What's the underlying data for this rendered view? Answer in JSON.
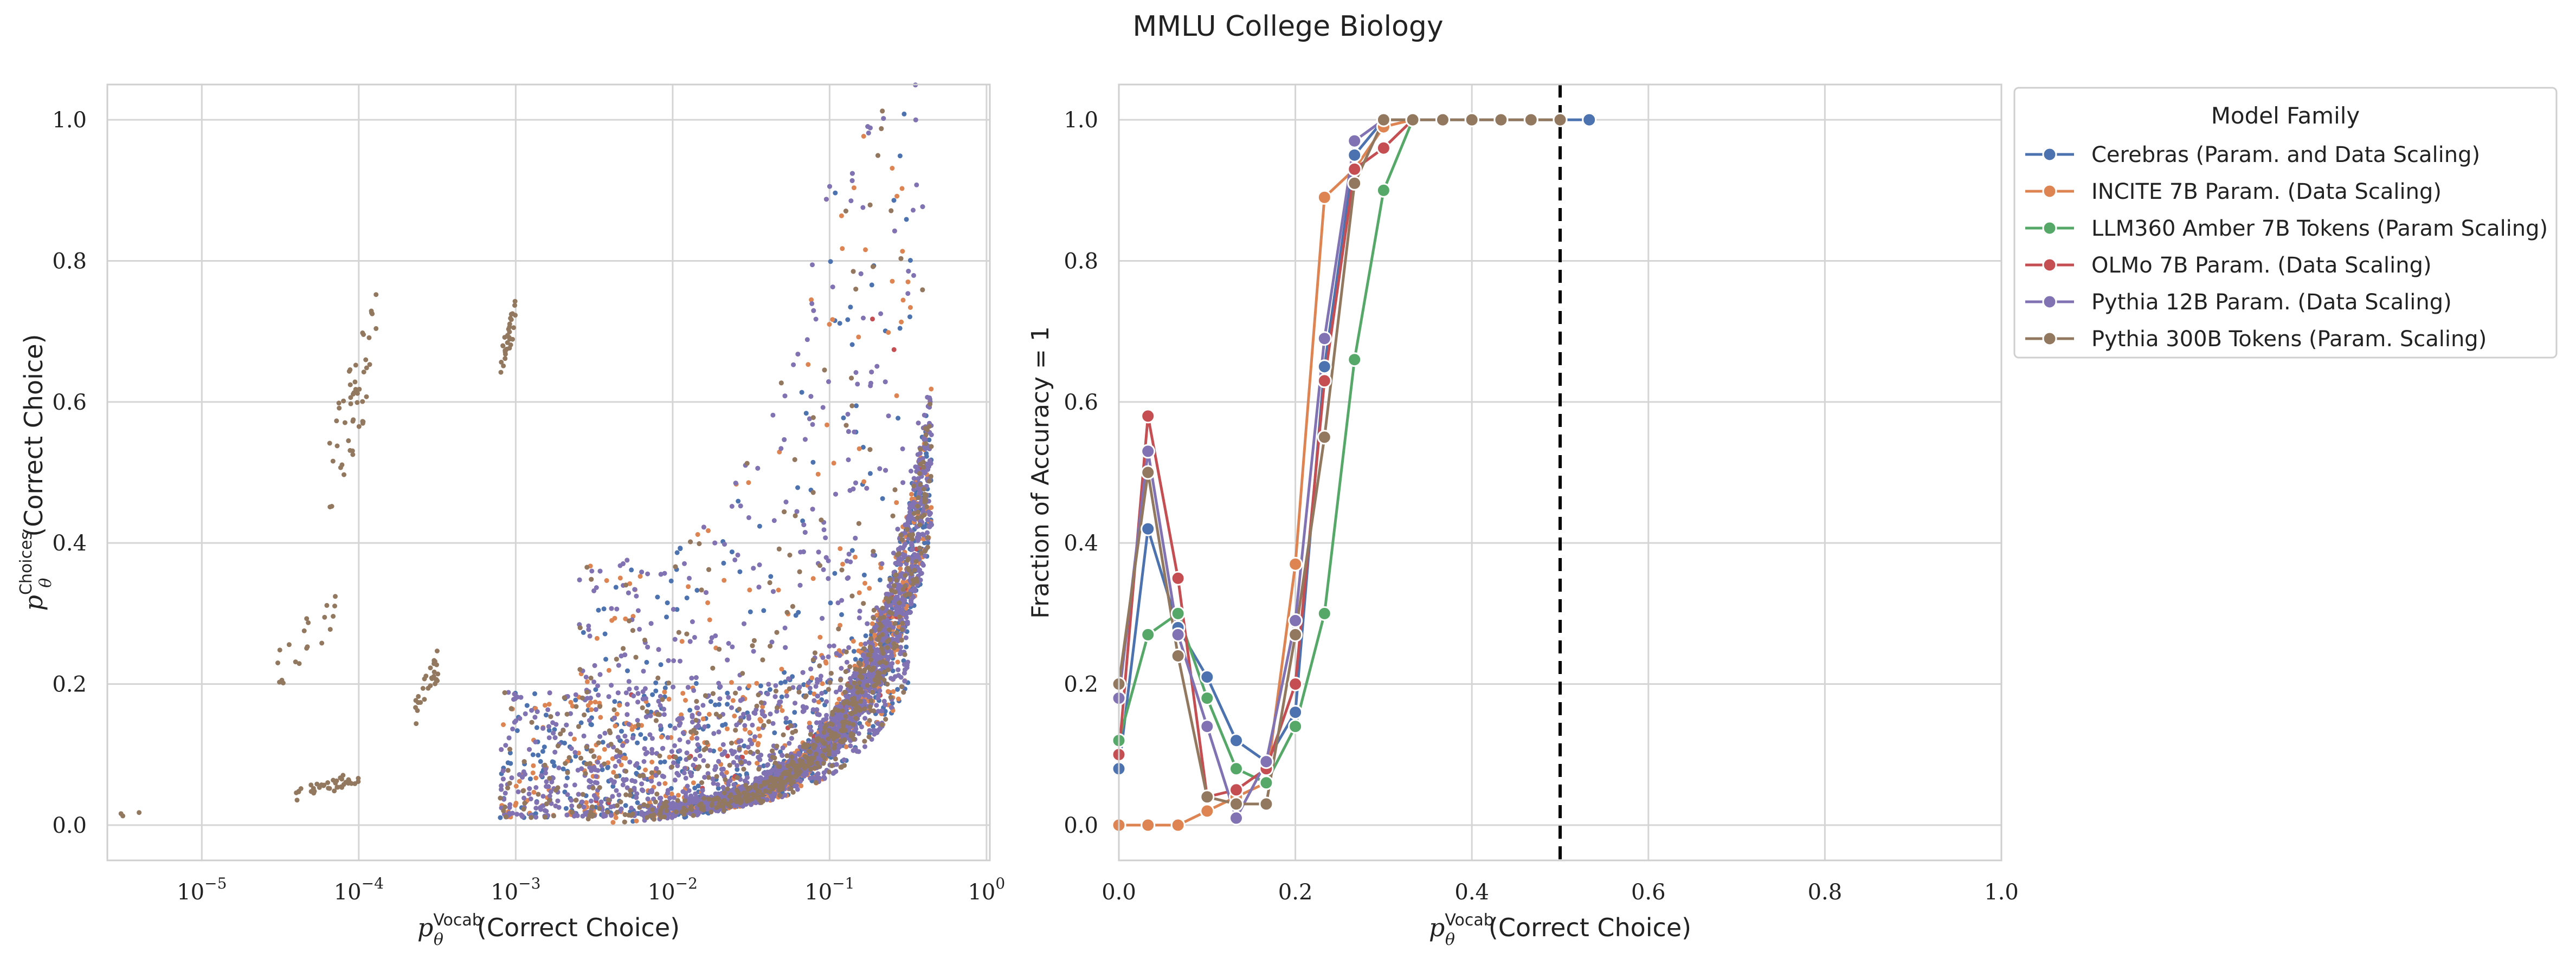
{
  "figure_title": "MMLU College Biology",
  "colors": {
    "Cerebras": "#4c72b0",
    "INCITE": "#dd8452",
    "LLM360": "#55a868",
    "OLMo": "#c44e52",
    "Pythia12B": "#8172b3",
    "Pythia300B": "#937860",
    "grid": "#d5d5d5",
    "threshold": "#000000"
  },
  "chart_data": [
    {
      "type": "scatter",
      "xlabel_math": "p",
      "xlabel_sub": "θ",
      "xlabel_sup": "Vocab",
      "xlabel_rest": "(Correct Choice)",
      "ylabel_math": "p",
      "ylabel_sub": "θ",
      "ylabel_sup": "Choices",
      "ylabel_rest": "(Correct Choice)",
      "xscale": "log",
      "xlim": [
        2.5e-06,
        1.05
      ],
      "ylim": [
        -0.05,
        1.05
      ],
      "x_ticks": [
        {
          "base": "10",
          "exp": "−5",
          "v": 1e-05
        },
        {
          "base": "10",
          "exp": "−4",
          "v": 0.0001
        },
        {
          "base": "10",
          "exp": "−3",
          "v": 0.001
        },
        {
          "base": "10",
          "exp": "−2",
          "v": 0.01
        },
        {
          "base": "10",
          "exp": "−1",
          "v": 0.1
        },
        {
          "base": "10",
          "exp": "0",
          "v": 1
        }
      ],
      "y_ticks": [
        "0.0",
        "0.2",
        "0.4",
        "0.6",
        "0.8",
        "1.0"
      ],
      "grid": true,
      "series_keys": [
        "Cerebras",
        "INCITE",
        "LLM360",
        "OLMo",
        "Pythia12B",
        "Pythia300B"
      ],
      "series": [
        {
          "key": "Cerebras",
          "n": 900
        },
        {
          "key": "INCITE",
          "n": 1100
        },
        {
          "key": "LLM360",
          "n": 700
        },
        {
          "key": "OLMo",
          "n": 900
        },
        {
          "key": "Pythia12B",
          "n": 2200
        },
        {
          "key": "Pythia300B",
          "n": 700
        }
      ],
      "clusters": [
        {
          "key": "Pythia300B",
          "x": [
            0.0008,
            0.001
          ],
          "y": [
            0.63,
            0.75
          ],
          "n": 30
        },
        {
          "key": "Pythia300B",
          "x": [
            6.5e-05,
            0.00013
          ],
          "y": [
            0.42,
            0.77
          ],
          "n": 50
        },
        {
          "key": "Pythia300B",
          "x": [
            3e-05,
            8e-05
          ],
          "y": [
            0.19,
            0.35
          ],
          "n": 20
        },
        {
          "key": "Pythia300B",
          "x": [
            4e-05,
            0.0001
          ],
          "y": [
            0.03,
            0.08
          ],
          "n": 40
        },
        {
          "key": "Pythia300B",
          "x": [
            0.00023,
            0.00032
          ],
          "y": [
            0.14,
            0.25
          ],
          "n": 30
        },
        {
          "key": "Pythia300B",
          "x": [
            2.5e-06,
            4e-06
          ],
          "y": [
            0.01,
            0.02
          ],
          "n": 3
        }
      ]
    },
    {
      "type": "line",
      "xlabel_math": "p",
      "xlabel_sub": "θ",
      "xlabel_sup": "Vocab",
      "xlabel_rest": "(Correct Choice)",
      "ylabel": "Fraction of Accuracy = 1",
      "xlim": [
        0.0,
        1.0
      ],
      "ylim": [
        -0.05,
        1.05
      ],
      "x_ticks": [
        "0.0",
        "0.2",
        "0.4",
        "0.6",
        "0.8",
        "1.0"
      ],
      "y_ticks": [
        "0.0",
        "0.2",
        "0.4",
        "0.6",
        "0.8",
        "1.0"
      ],
      "threshold_x": 0.5,
      "legend_title": "Model Family",
      "legend_position": "outside upper right",
      "series": [
        {
          "key": "Cerebras",
          "name": "Cerebras (Param. and Data Scaling)",
          "x": [
            0.0,
            0.033,
            0.067,
            0.1,
            0.133,
            0.167,
            0.2,
            0.233,
            0.267,
            0.3,
            0.333,
            0.367,
            0.4,
            0.433,
            0.467,
            0.5,
            0.533
          ],
          "y": [
            0.08,
            0.42,
            0.28,
            0.21,
            0.12,
            0.09,
            0.16,
            0.65,
            0.95,
            1.0,
            1.0,
            1.0,
            1.0,
            1.0,
            1.0,
            1.0,
            1.0
          ]
        },
        {
          "key": "INCITE",
          "name": "INCITE 7B Param. (Data Scaling)",
          "x": [
            0.0,
            0.033,
            0.067,
            0.1,
            0.133,
            0.167,
            0.2,
            0.233,
            0.267,
            0.3,
            0.333
          ],
          "y": [
            0.0,
            0.0,
            0.0,
            0.02,
            0.04,
            0.06,
            0.37,
            0.89,
            0.93,
            0.99,
            1.0
          ]
        },
        {
          "key": "LLM360",
          "name": "LLM360 Amber 7B Tokens (Param Scaling)",
          "x": [
            0.0,
            0.033,
            0.067,
            0.1,
            0.133,
            0.167,
            0.2,
            0.233,
            0.267,
            0.3,
            0.333
          ],
          "y": [
            0.12,
            0.27,
            0.3,
            0.18,
            0.08,
            0.06,
            0.14,
            0.3,
            0.66,
            0.9,
            1.0
          ]
        },
        {
          "key": "OLMo",
          "name": "OLMo 7B Param. (Data Scaling)",
          "x": [
            0.0,
            0.033,
            0.067,
            0.1,
            0.133,
            0.167,
            0.2,
            0.233,
            0.267,
            0.3,
            0.333
          ],
          "y": [
            0.1,
            0.58,
            0.35,
            0.04,
            0.05,
            0.08,
            0.2,
            0.63,
            0.93,
            0.96,
            1.0
          ]
        },
        {
          "key": "Pythia12B",
          "name": "Pythia 12B Param. (Data Scaling)",
          "x": [
            0.0,
            0.033,
            0.067,
            0.1,
            0.133,
            0.167,
            0.2,
            0.233,
            0.267,
            0.3
          ],
          "y": [
            0.18,
            0.53,
            0.27,
            0.14,
            0.01,
            0.09,
            0.29,
            0.69,
            0.97,
            1.0
          ]
        },
        {
          "key": "Pythia300B",
          "name": "Pythia 300B Tokens (Param. Scaling)",
          "x": [
            0.0,
            0.033,
            0.067,
            0.1,
            0.133,
            0.167,
            0.2,
            0.233,
            0.267,
            0.3,
            0.333,
            0.367,
            0.4,
            0.433,
            0.467,
            0.5
          ],
          "y": [
            0.2,
            0.5,
            0.24,
            0.04,
            0.03,
            0.03,
            0.27,
            0.55,
            0.91,
            1.0,
            1.0,
            1.0,
            1.0,
            1.0,
            1.0,
            1.0
          ]
        }
      ]
    }
  ]
}
